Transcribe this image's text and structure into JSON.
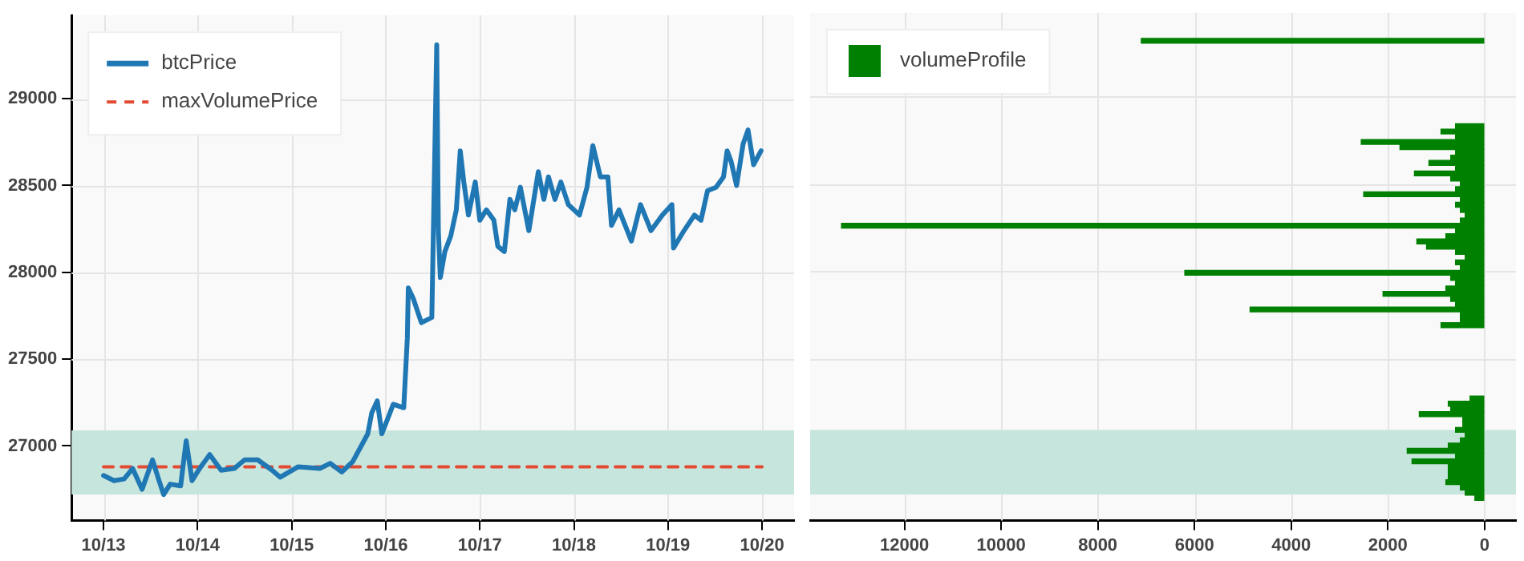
{
  "chart_data": [
    {
      "type": "line",
      "xlim": [
        "--10-12T15:50",
        "--10-20T08:10"
      ],
      "xticks": [
        {
          "value": "--10-13",
          "label": "10/13"
        },
        {
          "value": "--10-14",
          "label": "10/14"
        },
        {
          "value": "--10-15",
          "label": "10/15"
        },
        {
          "value": "--10-16",
          "label": "10/16"
        },
        {
          "value": "--10-17",
          "label": "10/17"
        },
        {
          "value": "--10-18",
          "label": "10/18"
        },
        {
          "value": "--10-19",
          "label": "10/19"
        },
        {
          "value": "--10-20",
          "label": "10/20"
        }
      ],
      "ylim": [
        26570,
        29480
      ],
      "yticks": [
        27000,
        27500,
        28000,
        28500,
        29000
      ],
      "grid": true,
      "legend": "top left",
      "bands": [
        {
          "axis": "y",
          "from": 26720,
          "to": 27090,
          "color": "#c6e5dc"
        }
      ],
      "series": [
        {
          "name": "btcPrice",
          "color": "#1f77b4",
          "x": [
            "--10-13T00:00",
            "--10-13T02:40",
            "--10-13T05:15",
            "--10-13T07:25",
            "--10-13T09:50",
            "--10-13T12:30",
            "--10-13T14:10",
            "--10-13T15:20",
            "--10-13T17:00",
            "--10-13T19:40",
            "--10-13T21:05",
            "--10-13T22:35",
            "--10-14T00:30",
            "--10-14T03:05",
            "--10-14T06:00",
            "--10-14T09:20",
            "--10-14T12:00",
            "--10-14T15:20",
            "--10-14T19:00",
            "--10-14T21:05",
            "--10-15T01:40",
            "--10-15T07:10",
            "--10-15T09:50",
            "--10-15T12:45",
            "--10-15T15:35",
            "--10-15T19:25",
            "--10-15T20:25",
            "--10-15T21:50",
            "--10-15T23:00",
            "--10-16T01:55",
            "--10-16T04:35",
            "--10-16T05:30",
            "--10-16T05:45",
            "--10-16T07:00",
            "--10-16T09:05",
            "--10-16T11:45",
            "--10-16T13:00",
            "--10-16T13:25",
            "--10-16T13:55",
            "--10-16T15:05",
            "--10-16T16:35",
            "--10-16T18:00",
            "--10-16T19:00",
            "--10-16T19:55",
            "--10-16T21:05",
            "--10-16T22:50",
            "--10-17T00:00",
            "--10-17T01:40",
            "--10-17T03:35",
            "--10-17T04:35",
            "--10-17T06:15",
            "--10-17T07:40",
            "--10-17T08:55",
            "--10-17T10:20",
            "--10-17T12:30",
            "--10-17T14:55",
            "--10-17T16:20",
            "--10-17T17:30",
            "--10-17T19:10",
            "--10-17T20:40",
            "--10-17T22:35",
            "--10-18T01:25",
            "--10-18T03:20",
            "--10-18T04:50",
            "--10-18T06:45",
            "--10-18T08:40",
            "--10-18T09:35",
            "--10-18T11:30",
            "--10-18T14:40",
            "--10-18T17:00",
            "--10-18T19:40",
            "--10-18T22:35",
            "--10-19T01:00",
            "--10-19T01:25",
            "--10-19T04:05",
            "--10-19T06:45",
            "--10-19T08:25",
            "--10-19T10:05",
            "--10-19T12:15",
            "--10-19T14:10",
            "--10-19T15:05",
            "--10-19T16:05",
            "--10-19T17:30",
            "--10-19T19:10",
            "--10-19T20:25",
            "--10-19T21:50",
            "--10-19T23:45"
          ],
          "values": [
            26830,
            26800,
            26810,
            26870,
            26750,
            26920,
            26800,
            26720,
            26780,
            26770,
            27030,
            26800,
            26870,
            26950,
            26860,
            26870,
            26920,
            26920,
            26860,
            26820,
            26880,
            26870,
            26900,
            26850,
            26910,
            27070,
            27190,
            27260,
            27070,
            27240,
            27220,
            27620,
            27910,
            27850,
            27710,
            27740,
            29310,
            28240,
            27970,
            28120,
            28210,
            28360,
            28700,
            28520,
            28330,
            28520,
            28300,
            28360,
            28300,
            28150,
            28120,
            28420,
            28360,
            28490,
            28240,
            28580,
            28420,
            28550,
            28420,
            28520,
            28390,
            28330,
            28490,
            28730,
            28550,
            28550,
            28270,
            28360,
            28180,
            28390,
            28240,
            28330,
            28390,
            28140,
            28240,
            28330,
            28300,
            28470,
            28490,
            28550,
            28700,
            28640,
            28500,
            28740,
            28820,
            28620,
            28700
          ]
        },
        {
          "name": "maxVolumePrice",
          "type": "line",
          "line_style": "dashed",
          "color": "#e34a33",
          "x": [
            "--10-13T00:00",
            "--10-20T00:00"
          ],
          "values": [
            26880,
            26880
          ]
        }
      ]
    },
    {
      "type": "bar",
      "orientation": "horizontal",
      "xlim": [
        13950,
        -650
      ],
      "xticks": [
        12000,
        10000,
        8000,
        6000,
        4000,
        2000,
        0
      ],
      "ylim": [
        26570,
        29480
      ],
      "yticks": [
        27000,
        27500,
        28000,
        28500,
        29000
      ],
      "tick_labels": "x",
      "grid": true,
      "legend": "top left",
      "bands": [
        {
          "axis": "y",
          "from": 26720,
          "to": 27090,
          "color": "#c6e5dc"
        }
      ],
      "x": [
        26700,
        26730,
        26760,
        26790,
        26820,
        26850,
        26880,
        26910,
        26940,
        26970,
        27000,
        27030,
        27060,
        27090,
        27120,
        27150,
        27180,
        27210,
        27240,
        27270,
        27690,
        27720,
        27750,
        27780,
        27810,
        27840,
        27870,
        27900,
        27930,
        27960,
        27990,
        28020,
        28050,
        28080,
        28110,
        28140,
        28170,
        28200,
        28230,
        28260,
        28290,
        28320,
        28350,
        28380,
        28410,
        28440,
        28470,
        28500,
        28530,
        28560,
        28590,
        28620,
        28650,
        28680,
        28710,
        28740,
        28770,
        28800,
        28830,
        29320
      ],
      "series": [
        {
          "name": "volumeProfile",
          "color": "#008000",
          "values": [
            200,
            400,
            500,
            800,
            750,
            750,
            750,
            1500,
            600,
            1600,
            750,
            500,
            400,
            600,
            450,
            450,
            1350,
            700,
            750,
            300,
            900,
            500,
            500,
            4850,
            600,
            700,
            2100,
            800,
            600,
            700,
            6200,
            500,
            600,
            400,
            600,
            1200,
            1400,
            800,
            600,
            13300,
            500,
            400,
            500,
            600,
            500,
            2500,
            600,
            500,
            700,
            1450,
            600,
            1150,
            700,
            600,
            1750,
            2550,
            600,
            900,
            600,
            7100
          ]
        }
      ]
    }
  ]
}
